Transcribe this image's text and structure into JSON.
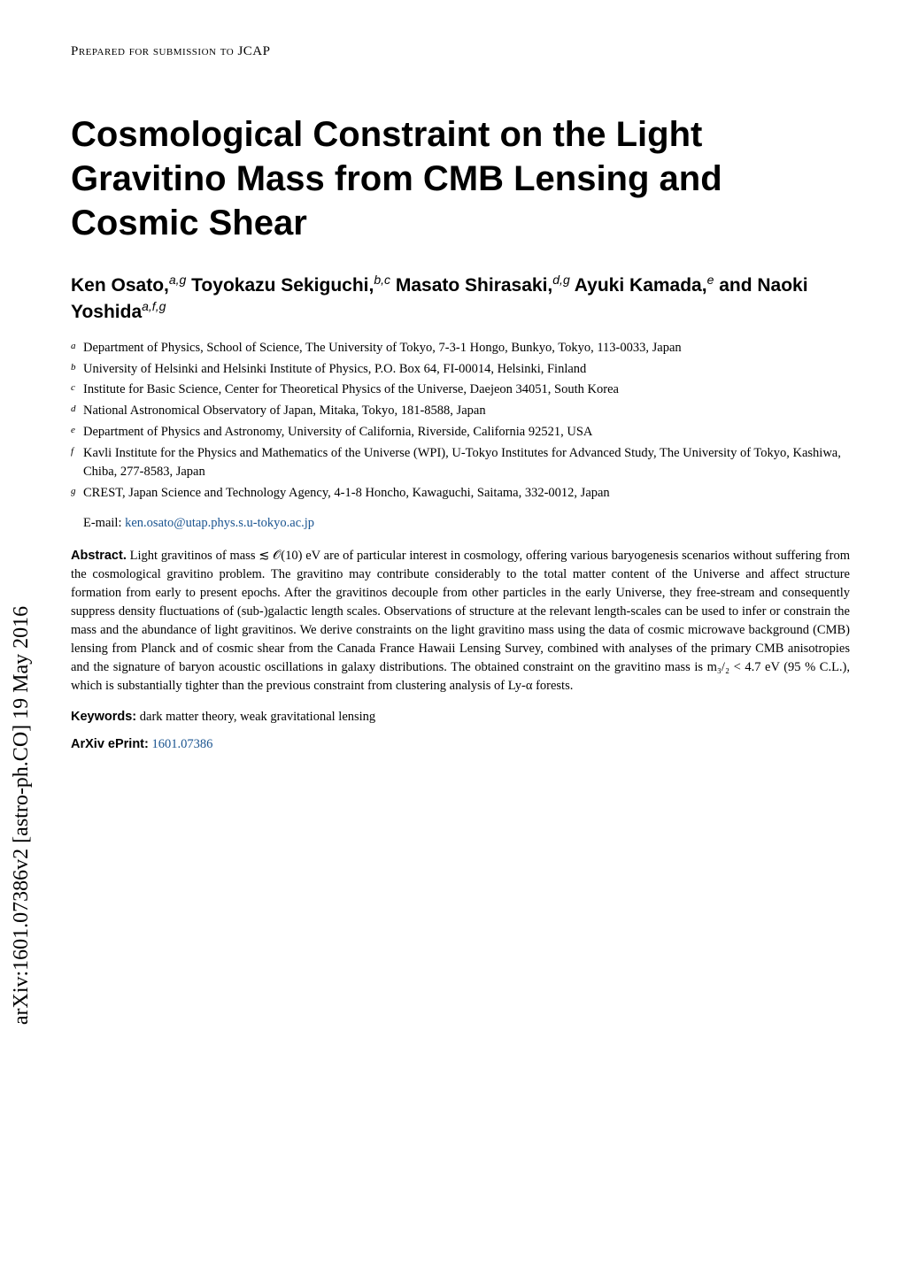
{
  "arxiv_sidebar": "arXiv:1601.07386v2  [astro-ph.CO]  19 May 2016",
  "prepared": "Prepared for submission to JCAP",
  "title": "Cosmological Constraint on the Light Gravitino Mass from CMB Lensing and Cosmic Shear",
  "authors_html": "Ken Osato,<sup>a,g</sup> Toyokazu Sekiguchi,<sup>b,c</sup> Masato Shirasaki,<sup>d,g</sup> Ayuki Kamada,<sup>e</sup> and Naoki Yoshida<sup>a,f,g</sup>",
  "affiliations": [
    {
      "sup": "a",
      "text": "Department of Physics, School of Science, The University of Tokyo, 7-3-1 Hongo, Bunkyo, Tokyo, 113-0033, Japan"
    },
    {
      "sup": "b",
      "text": "University of Helsinki and Helsinki Institute of Physics, P.O. Box 64, FI-00014, Helsinki, Finland"
    },
    {
      "sup": "c",
      "text": "Institute for Basic Science, Center for Theoretical Physics of the Universe, Daejeon 34051, South Korea"
    },
    {
      "sup": "d",
      "text": "National Astronomical Observatory of Japan, Mitaka, Tokyo, 181-8588, Japan"
    },
    {
      "sup": "e",
      "text": "Department of Physics and Astronomy, University of California, Riverside, California 92521, USA"
    },
    {
      "sup": "f",
      "text": "Kavli Institute for the Physics and Mathematics of the Universe (WPI), U-Tokyo Institutes for Advanced Study, The University of Tokyo, Kashiwa, Chiba, 277-8583, Japan"
    },
    {
      "sup": "g",
      "text": "CREST, Japan Science and Technology Agency, 4-1-8 Honcho, Kawaguchi, Saitama, 332-0012, Japan"
    }
  ],
  "email_label": "E-mail: ",
  "email": "ken.osato@utap.phys.s.u-tokyo.ac.jp",
  "abstract_label": "Abstract.",
  "abstract_text": "  Light gravitinos of mass ≲ 𝒪(10) eV are of particular interest in cosmology, offering various baryogenesis scenarios without suffering from the cosmological gravitino problem. The gravitino may contribute considerably to the total matter content of the Universe and affect structure formation from early to present epochs. After the gravitinos decouple from other particles in the early Universe, they free-stream and consequently suppress density fluctuations of (sub-)galactic length scales. Observations of structure at the relevant length-scales can be used to infer or constrain the mass and the abundance of light gravitinos. We derive constraints on the light gravitino mass using the data of cosmic microwave background (CMB) lensing from Planck and of cosmic shear from the Canada France Hawaii Lensing Survey, combined with analyses of the primary CMB anisotropies and the signature of baryon acoustic oscillations in galaxy distributions. The obtained constraint on the gravitino mass is m₃/₂ < 4.7 eV (95 % C.L.), which is substantially tighter than the previous constraint from clustering analysis of Ly-α forests.",
  "keywords_label": "Keywords:",
  "keywords_text": " dark matter theory, weak gravitational lensing",
  "arxiv_label": "ArXiv ePrint:",
  "arxiv_link": "1601.07386",
  "colors": {
    "link": "#1a5490",
    "text": "#000000",
    "background": "#ffffff"
  }
}
